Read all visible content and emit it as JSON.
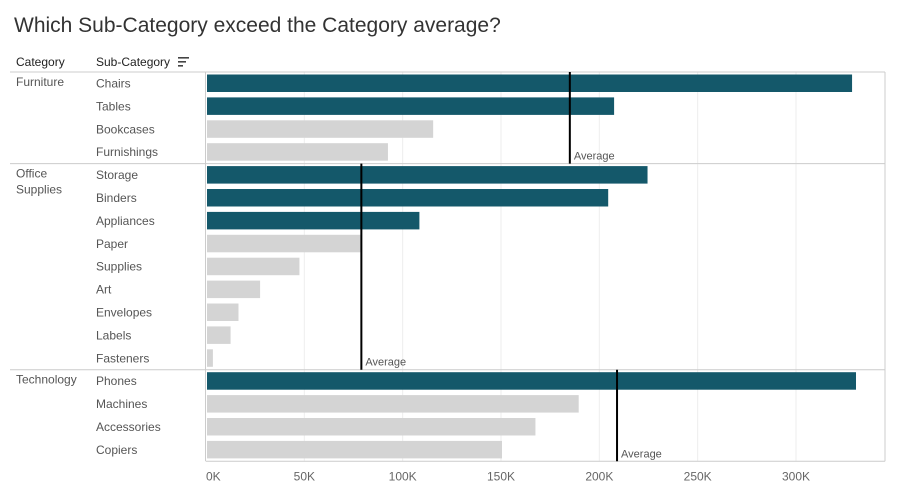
{
  "title": "Which Sub-Category exceed the Category average?",
  "headers": {
    "category": "Category",
    "subcategory": "Sub-Category"
  },
  "sort_icon": "sort-descending-icon",
  "colors": {
    "above": "#14586a",
    "below": "#d4d4d4",
    "avg_line": "#000000",
    "grid": "#eeeeee",
    "divider": "#cccccc"
  },
  "avg_label": "Average",
  "chart_data": {
    "type": "bar",
    "orientation": "horizontal",
    "title": "Which Sub-Category exceed the Category average?",
    "xlim": [
      0,
      350000
    ],
    "x_ticks": [
      0,
      50000,
      100000,
      150000,
      200000,
      250000,
      300000
    ],
    "x_tick_labels": [
      "0K",
      "50K",
      "100K",
      "150K",
      "200K",
      "250K",
      "300K"
    ],
    "groups": [
      {
        "category": "Furniture",
        "average": 185000,
        "items": [
          {
            "name": "Chairs",
            "value": 328000,
            "above_average": true
          },
          {
            "name": "Tables",
            "value": 207000,
            "above_average": true
          },
          {
            "name": "Bookcases",
            "value": 115000,
            "above_average": false
          },
          {
            "name": "Furnishings",
            "value": 92000,
            "above_average": false
          }
        ]
      },
      {
        "category": "Office Supplies",
        "average": 79000,
        "items": [
          {
            "name": "Storage",
            "value": 224000,
            "above_average": true
          },
          {
            "name": "Binders",
            "value": 204000,
            "above_average": true
          },
          {
            "name": "Appliances",
            "value": 108000,
            "above_average": true
          },
          {
            "name": "Paper",
            "value": 78000,
            "above_average": false
          },
          {
            "name": "Supplies",
            "value": 47000,
            "above_average": false
          },
          {
            "name": "Art",
            "value": 27000,
            "above_average": false
          },
          {
            "name": "Envelopes",
            "value": 16000,
            "above_average": false
          },
          {
            "name": "Labels",
            "value": 12000,
            "above_average": false
          },
          {
            "name": "Fasteners",
            "value": 3000,
            "above_average": false
          }
        ]
      },
      {
        "category": "Technology",
        "average": 209000,
        "items": [
          {
            "name": "Phones",
            "value": 330000,
            "above_average": true
          },
          {
            "name": "Machines",
            "value": 189000,
            "above_average": false
          },
          {
            "name": "Accessories",
            "value": 167000,
            "above_average": false
          },
          {
            "name": "Copiers",
            "value": 150000,
            "above_average": false
          }
        ]
      }
    ]
  }
}
